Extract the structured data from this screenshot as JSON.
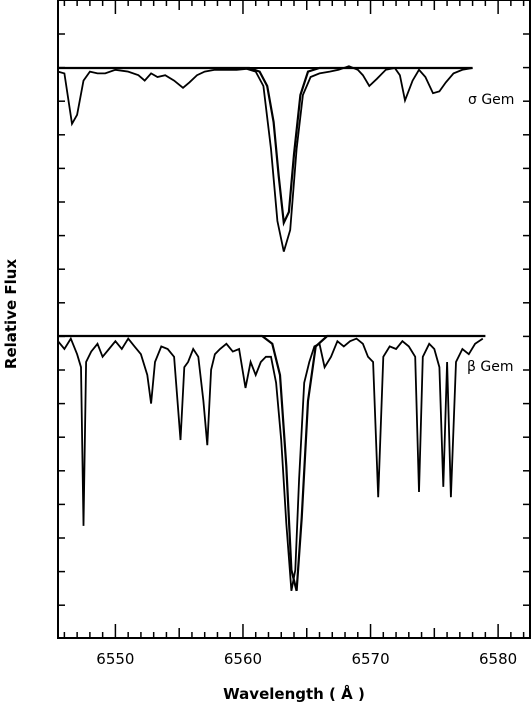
{
  "chart_data": {
    "type": "line",
    "xlabel": "Wavelength ( Å )",
    "ylabel": "Relative Flux",
    "xlim": [
      6545.5,
      6582.5
    ],
    "xticks": [
      6550,
      6560,
      6570,
      6580
    ],
    "xtick_labels": [
      "6550",
      "6560",
      "6570",
      "6580"
    ],
    "grid": false,
    "series": [
      {
        "name": "σ Gem",
        "role": "observed",
        "continuum_level": 1.0,
        "x": [
          6545.5,
          6546.0,
          6546.6,
          6547.0,
          6547.5,
          6548.0,
          6548.6,
          6549.2,
          6550.0,
          6551.0,
          6551.8,
          6552.3,
          6552.8,
          6553.3,
          6553.9,
          6554.6,
          6555.3,
          6555.8,
          6556.4,
          6557.0,
          6557.8,
          6558.6,
          6559.5,
          6560.3,
          6561.0,
          6561.6,
          6562.2,
          6562.7,
          6563.2,
          6563.7,
          6564.2,
          6564.7,
          6565.3,
          6566.0,
          6566.8,
          6567.5,
          6568.3,
          6569.0,
          6569.4,
          6569.9,
          6570.5,
          6571.2,
          6571.9,
          6572.3,
          6572.7,
          6573.3,
          6573.8,
          6574.3,
          6574.9,
          6575.4,
          6575.9,
          6576.5,
          6577.2,
          6578.0
        ],
        "y": [
          0.98,
          0.97,
          0.69,
          0.74,
          0.93,
          0.98,
          0.97,
          0.97,
          0.99,
          0.98,
          0.96,
          0.93,
          0.97,
          0.95,
          0.96,
          0.93,
          0.89,
          0.92,
          0.96,
          0.98,
          0.99,
          0.99,
          0.99,
          0.995,
          0.98,
          0.9,
          0.55,
          0.15,
          -0.02,
          0.1,
          0.55,
          0.85,
          0.95,
          0.97,
          0.98,
          0.99,
          1.01,
          0.99,
          0.96,
          0.9,
          0.94,
          0.99,
          1.0,
          0.96,
          0.82,
          0.93,
          0.99,
          0.95,
          0.86,
          0.87,
          0.92,
          0.97,
          0.99,
          1.0
        ]
      },
      {
        "name": "σ Gem",
        "role": "synthetic",
        "continuum_level": 1.0,
        "x": [
          6545.5,
          6560.5,
          6561.3,
          6561.9,
          6562.4,
          6562.8,
          6563.2,
          6563.6,
          6564.0,
          6564.5,
          6565.1,
          6566.0,
          6578.0
        ],
        "y": [
          1.0,
          1.0,
          0.98,
          0.9,
          0.7,
          0.4,
          0.14,
          0.2,
          0.52,
          0.85,
          0.98,
          1.0,
          1.0
        ]
      },
      {
        "name": "β Gem",
        "role": "observed",
        "continuum_level": 1.0,
        "x": [
          6545.5,
          6546.0,
          6546.5,
          6547.0,
          6547.3,
          6547.5,
          6547.7,
          6548.1,
          6548.6,
          6549.0,
          6549.5,
          6550.0,
          6550.5,
          6551.0,
          6551.5,
          6552.0,
          6552.5,
          6552.8,
          6553.1,
          6553.6,
          6554.1,
          6554.6,
          6555.1,
          6555.4,
          6555.7,
          6556.1,
          6556.5,
          6556.9,
          6557.2,
          6557.5,
          6557.8,
          6558.2,
          6558.7,
          6559.2,
          6559.7,
          6560.2,
          6560.6,
          6561.0,
          6561.4,
          6561.8,
          6562.2,
          6562.6,
          6563.0,
          6563.4,
          6563.8,
          6564.1,
          6564.4,
          6564.8,
          6565.2,
          6565.6,
          6566.0,
          6566.4,
          6566.9,
          6567.4,
          6567.9,
          6568.4,
          6568.9,
          6569.4,
          6569.8,
          6570.2,
          6570.6,
          6571.0,
          6571.5,
          6572.0,
          6572.5,
          6573.0,
          6573.5,
          6573.8,
          6574.1,
          6574.6,
          6575.0,
          6575.4,
          6575.7,
          6576.0,
          6576.3,
          6576.7,
          6577.2,
          6577.7,
          6578.2,
          6578.8
        ],
        "y": [
          0.98,
          0.95,
          0.99,
          0.93,
          0.88,
          0.27,
          0.9,
          0.94,
          0.97,
          0.92,
          0.95,
          0.98,
          0.95,
          0.99,
          0.96,
          0.93,
          0.85,
          0.74,
          0.9,
          0.96,
          0.95,
          0.92,
          0.6,
          0.88,
          0.9,
          0.95,
          0.92,
          0.75,
          0.58,
          0.87,
          0.93,
          0.95,
          0.97,
          0.94,
          0.95,
          0.8,
          0.9,
          0.85,
          0.9,
          0.92,
          0.92,
          0.82,
          0.6,
          0.28,
          0.02,
          0.1,
          0.45,
          0.82,
          0.9,
          0.96,
          0.97,
          0.88,
          0.92,
          0.98,
          0.96,
          0.98,
          0.99,
          0.97,
          0.92,
          0.9,
          0.38,
          0.92,
          0.96,
          0.95,
          0.98,
          0.96,
          0.92,
          0.4,
          0.92,
          0.97,
          0.95,
          0.88,
          0.42,
          0.9,
          0.38,
          0.9,
          0.95,
          0.93,
          0.97,
          0.99
        ]
      },
      {
        "name": "β Gem",
        "role": "synthetic",
        "continuum_level": 1.0,
        "x": [
          6545.5,
          6561.5,
          6562.3,
          6562.9,
          6563.4,
          6563.8,
          6564.2,
          6564.6,
          6565.1,
          6565.7,
          6566.6,
          6579.0
        ],
        "y": [
          1.0,
          1.0,
          0.97,
          0.85,
          0.5,
          0.1,
          0.02,
          0.3,
          0.75,
          0.96,
          1.0,
          1.0
        ]
      }
    ]
  }
}
